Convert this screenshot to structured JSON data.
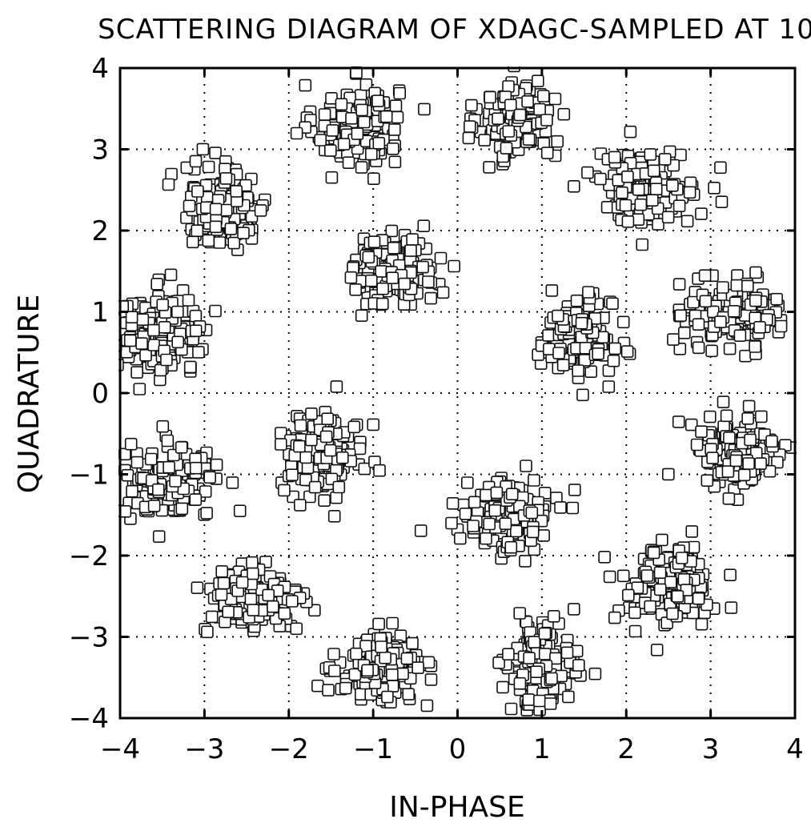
{
  "chart_data": {
    "type": "scatter",
    "title": "SCATTERING DIAGRAM OF XDAGC-SAMPLED AT 10",
    "xlabel": "IN-PHASE",
    "ylabel": "QUADRATURE",
    "xlim": [
      -4,
      4
    ],
    "ylim": [
      -4,
      4
    ],
    "xticks": [
      -4,
      -3,
      -2,
      -1,
      0,
      1,
      2,
      3,
      4
    ],
    "yticks": [
      -4,
      -3,
      -2,
      -1,
      0,
      1,
      2,
      3,
      4
    ],
    "x_tick_labels": [
      "−4",
      "−3",
      "−2",
      "−1",
      "0",
      "1",
      "2",
      "3",
      "4"
    ],
    "y_tick_labels": [
      "−4",
      "−3",
      "−2",
      "−1",
      "0",
      "1",
      "2",
      "3",
      "4"
    ],
    "grid": true,
    "marker": "open-square",
    "clusters": [
      {
        "cx": -1.2,
        "cy": 3.3,
        "sx": 0.25,
        "sy": 0.25,
        "n": 170
      },
      {
        "cx": 0.7,
        "cy": 3.35,
        "sx": 0.22,
        "sy": 0.25,
        "n": 150
      },
      {
        "cx": -2.75,
        "cy": 2.3,
        "sx": 0.25,
        "sy": 0.25,
        "n": 150
      },
      {
        "cx": 2.25,
        "cy": 2.55,
        "sx": 0.3,
        "sy": 0.22,
        "n": 150
      },
      {
        "cx": -0.75,
        "cy": 1.5,
        "sx": 0.25,
        "sy": 0.22,
        "n": 140
      },
      {
        "cx": -3.5,
        "cy": 0.75,
        "sx": 0.28,
        "sy": 0.25,
        "n": 160
      },
      {
        "cx": 1.4,
        "cy": 0.65,
        "sx": 0.22,
        "sy": 0.25,
        "n": 130
      },
      {
        "cx": 3.25,
        "cy": 1.0,
        "sx": 0.28,
        "sy": 0.2,
        "n": 150
      },
      {
        "cx": -3.4,
        "cy": -1.1,
        "sx": 0.28,
        "sy": 0.22,
        "n": 150
      },
      {
        "cx": -1.6,
        "cy": -0.75,
        "sx": 0.25,
        "sy": 0.25,
        "n": 150
      },
      {
        "cx": 0.6,
        "cy": -1.5,
        "sx": 0.25,
        "sy": 0.22,
        "n": 140
      },
      {
        "cx": 3.3,
        "cy": -0.75,
        "sx": 0.25,
        "sy": 0.25,
        "n": 150
      },
      {
        "cx": -2.4,
        "cy": -2.55,
        "sx": 0.3,
        "sy": 0.22,
        "n": 150
      },
      {
        "cx": 2.5,
        "cy": -2.35,
        "sx": 0.28,
        "sy": 0.25,
        "n": 150
      },
      {
        "cx": -0.9,
        "cy": -3.4,
        "sx": 0.25,
        "sy": 0.2,
        "n": 160
      },
      {
        "cx": 1.0,
        "cy": -3.35,
        "sx": 0.2,
        "sy": 0.25,
        "n": 150
      }
    ]
  }
}
